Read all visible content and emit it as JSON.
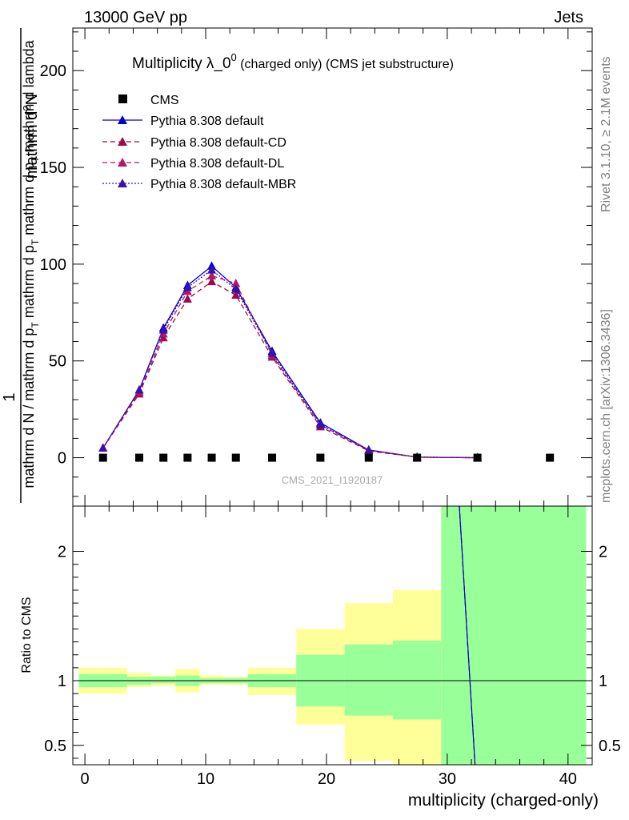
{
  "header": {
    "left": "13000 GeV pp",
    "right": "Jets"
  },
  "side_labels": {
    "rivet": "Rivet 3.1.10, ≥ 2.1M events",
    "mcplots": "mcplots.cern.ch [arXiv:1306.3436]"
  },
  "main_title": {
    "prefix": "Multiplicity λ_0",
    "superscript": "0",
    "suffix": " (charged only) (CMS jet substructure)"
  },
  "watermark": "CMS_2021_I1920187",
  "y_label": {
    "numerator_prefix": "1",
    "numerator": "mathrm d",
    "numerator_sup": "2",
    "numerator_end": "N",
    "denominator_part1": "mathrm d N / mathrm d p",
    "denominator_sub1": "T",
    "denominator_part2": " mathrm d p",
    "denominator_sub2": "T",
    "denominator_part3": " mathrm d p",
    "denominator_sub3": "T",
    "denominator_part4": " mathrm d lambda"
  },
  "ratio_ylabel": "Ratio to CMS",
  "x_label": "multiplicity (charged-only)",
  "colors": {
    "cms": "#000000",
    "default": "#0000cc",
    "cd": "#9f0a4a",
    "dl": "#b0186a",
    "mbr": "#3a10b0",
    "band_inner": "#99ff99",
    "band_outer": "#ffff99"
  },
  "chart_data": {
    "type": "line",
    "x_ticks": [
      "0",
      "10",
      "20",
      "30",
      "40"
    ],
    "xlim": [
      -1,
      42
    ],
    "main": {
      "ylim": [
        -25,
        222
      ],
      "y_ticks": [
        "0",
        "50",
        "100",
        "150",
        "200"
      ],
      "cms": {
        "name": "CMS",
        "x": [
          1.5,
          4.5,
          6.5,
          8.5,
          10.5,
          12.5,
          15.5,
          19.5,
          23.5,
          27.5,
          32.5,
          38.5
        ],
        "values": [
          0,
          0,
          0,
          0,
          0,
          0,
          0,
          0,
          0,
          0,
          0,
          0
        ]
      },
      "series": [
        {
          "name": "Pythia 8.308 default",
          "x": [
            1.5,
            4.5,
            6.5,
            8.5,
            10.5,
            12.5,
            15.5,
            19.5,
            23.5,
            27.5,
            32.5
          ],
          "values": [
            5,
            35,
            67,
            89,
            99,
            88,
            55,
            18,
            4,
            0.3,
            0
          ]
        },
        {
          "name": "Pythia 8.308 default-CD",
          "x": [
            1.5,
            4.5,
            6.5,
            8.5,
            10.5,
            12.5,
            15.5,
            19.5,
            23.5,
            27.5,
            32.5
          ],
          "values": [
            5,
            33,
            62,
            82,
            91,
            84,
            52,
            16,
            3.5,
            0.3,
            0
          ]
        },
        {
          "name": "Pythia 8.308 default-DL",
          "x": [
            1.5,
            4.5,
            6.5,
            8.5,
            10.5,
            12.5,
            15.5,
            19.5,
            23.5,
            27.5,
            32.5
          ],
          "values": [
            5,
            34,
            64,
            86,
            94,
            90,
            53,
            17,
            3.8,
            0.3,
            0
          ]
        },
        {
          "name": "Pythia 8.308 default-MBR",
          "x": [
            1.5,
            4.5,
            6.5,
            8.5,
            10.5,
            12.5,
            15.5,
            19.5,
            23.5,
            27.5,
            32.5
          ],
          "values": [
            5,
            35,
            66,
            88,
            97,
            87,
            54,
            17,
            4,
            0.3,
            0
          ]
        }
      ]
    },
    "ratio": {
      "ylim": [
        0.35,
        2.35
      ],
      "y_ticks": [
        "0.5",
        "1",
        "2"
      ],
      "reference": 1,
      "bands": [
        {
          "x0": -0.5,
          "x1": 3.5,
          "inner": [
            0.95,
            1.05
          ],
          "outer": [
            0.9,
            1.1
          ]
        },
        {
          "x0": 3.5,
          "x1": 5.5,
          "inner": [
            0.97,
            1.03
          ],
          "outer": [
            0.95,
            1.06
          ]
        },
        {
          "x0": 5.5,
          "x1": 7.5,
          "inner": [
            0.98,
            1.03
          ],
          "outer": [
            0.96,
            1.04
          ]
        },
        {
          "x0": 7.5,
          "x1": 9.5,
          "inner": [
            0.96,
            1.04
          ],
          "outer": [
            0.91,
            1.09
          ]
        },
        {
          "x0": 9.5,
          "x1": 11.5,
          "inner": [
            0.98,
            1.02
          ],
          "outer": [
            0.97,
            1.04
          ]
        },
        {
          "x0": 11.5,
          "x1": 13.5,
          "inner": [
            0.98,
            1.02
          ],
          "outer": [
            0.97,
            1.03
          ]
        },
        {
          "x0": 13.5,
          "x1": 17.5,
          "inner": [
            0.95,
            1.05
          ],
          "outer": [
            0.89,
            1.1
          ]
        },
        {
          "x0": 17.5,
          "x1": 21.5,
          "inner": [
            0.8,
            1.2
          ],
          "outer": [
            0.66,
            1.4
          ]
        },
        {
          "x0": 21.5,
          "x1": 25.5,
          "inner": [
            0.73,
            1.28
          ],
          "outer": [
            0.38,
            1.6
          ]
        },
        {
          "x0": 25.5,
          "x1": 29.5,
          "inner": [
            0.7,
            1.31
          ],
          "outer": [
            0.35,
            1.7
          ]
        },
        {
          "x0": 29.5,
          "x1": 41.5,
          "inner": [
            0.35,
            2.35
          ],
          "outer": [
            0.35,
            2.35
          ]
        }
      ],
      "curve": {
        "x": [
          31,
          32.3
        ],
        "values": [
          2.35,
          0.35
        ]
      }
    }
  }
}
